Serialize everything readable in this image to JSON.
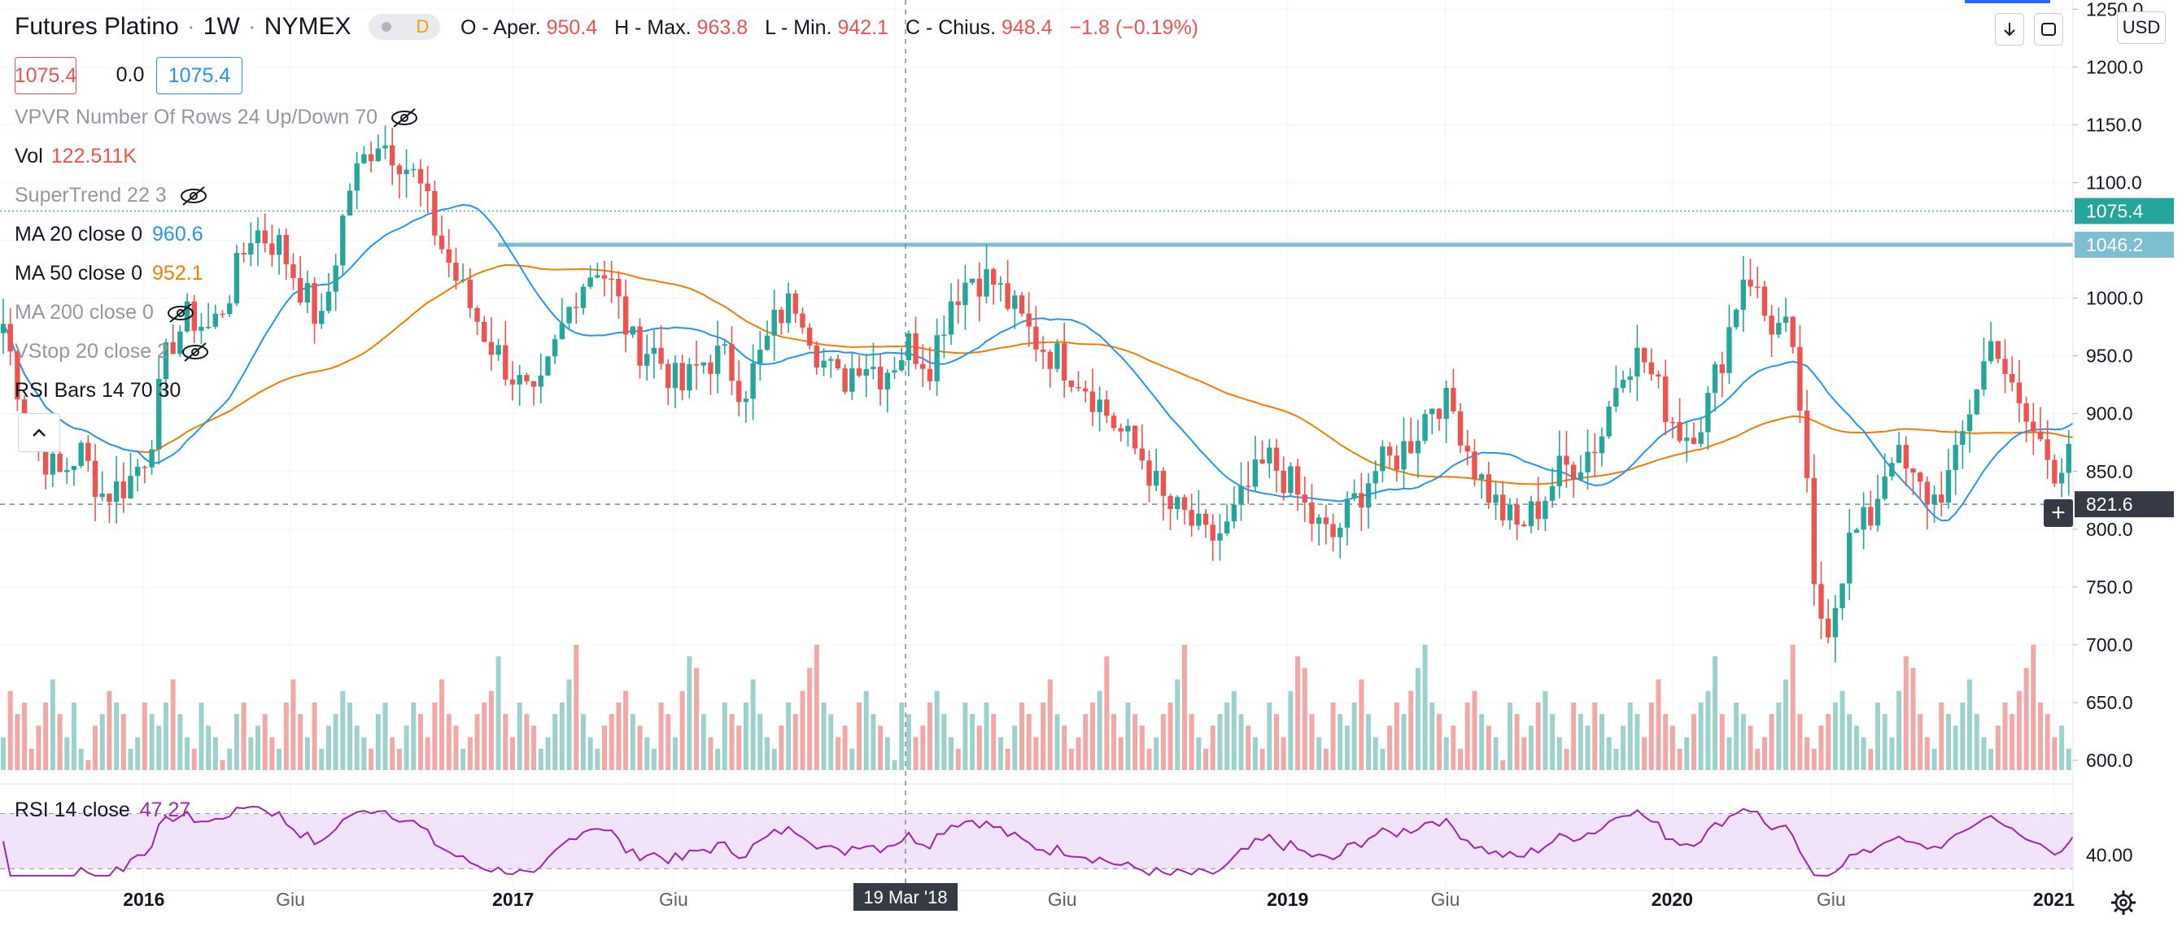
{
  "symbol": {
    "name": "Futures Platino",
    "interval": "1W",
    "exchange": "NYMEX",
    "badge": "D"
  },
  "ohlc": {
    "o_label": "O - Aper.",
    "o": "950.4",
    "h_label": "H - Max.",
    "h": "963.8",
    "l_label": "L - Min.",
    "l": "942.1",
    "c_label": "C - Chius.",
    "c": "948.4",
    "change": "−1.8 (−0.19%)"
  },
  "boxes": {
    "left": "1075.4",
    "mid": "0.0",
    "right": "1075.4"
  },
  "indicators": [
    {
      "label": "VPVR Number Of Rows 24 Up/Down 70",
      "value": "",
      "hidden": true
    },
    {
      "label": "Vol",
      "value": "122.511K",
      "hidden": false
    },
    {
      "label": "SuperTrend 22 3",
      "value": "",
      "hidden": true
    },
    {
      "label": "MA 20 close 0",
      "value": "960.6",
      "hidden": false
    },
    {
      "label": "MA 50 close 0",
      "value": "952.1",
      "hidden": false
    },
    {
      "label": "MA 200 close 0",
      "value": "",
      "hidden": true
    },
    {
      "label": "VStop 20 close 2",
      "value": "",
      "hidden": true
    },
    {
      "label": "RSI Bars 14 70 30",
      "value": "",
      "hidden": false
    }
  ],
  "rsi_legend": {
    "label": "RSI 14 close",
    "value": "47.27"
  },
  "currency": "USD",
  "crosshair_date": "19 Mar '18",
  "colors": {
    "up": "#26a69a",
    "down": "#ef5350",
    "ma20": "#2196f3",
    "ma50": "#f57c00",
    "hline": "#7cbfd0",
    "rsi": "#9c27b0",
    "rsi_band": "#f1e4fa",
    "vol_up": "#9dd2cc",
    "vol_down": "#f1a8a6"
  },
  "chart_data": {
    "type": "candlestick",
    "title": "Futures Platino · 1W · NYMEX",
    "ylim": [
      581,
      1258
    ],
    "ytick_labels": [
      "1250.0",
      "1200.0",
      "1150.0",
      "1100.0",
      "1050.0",
      "1000.0",
      "950.0",
      "900.0",
      "850.0",
      "800.0",
      "750.0",
      "700.0",
      "650.0",
      "600.0"
    ],
    "ytick_values": [
      1250,
      1200,
      1150,
      1100,
      1050,
      1000,
      950,
      900,
      850,
      800,
      750,
      700,
      650,
      600
    ],
    "xtick_labels": [
      "2016",
      "Giu",
      "2017",
      "Giu",
      "2018",
      "Giu",
      "2019",
      "Giu",
      "2020",
      "Giu",
      "2021",
      "Giu"
    ],
    "xtick_positions": [
      0.104,
      0.21,
      0.371,
      0.487,
      0.647,
      0.768,
      0.931,
      1.045,
      1.209,
      1.324,
      1.485,
      1.599
    ],
    "last_price": "1075.4",
    "last_value": 1075.4,
    "hline_label": "1046.2",
    "hline_value": 1046.2,
    "crosshair_price": "821.6",
    "crosshair_value": 821.6,
    "rsi_ticks": [
      "40.00"
    ],
    "rsi_tick_values": [
      40
    ],
    "rsi_range": [
      22,
      88
    ],
    "rsi_band": [
      30,
      70
    ],
    "anchors": [
      [
        0,
        978
      ],
      [
        0.014,
        906
      ],
      [
        0.026,
        870
      ],
      [
        0.04,
        845
      ],
      [
        0.055,
        868
      ],
      [
        0.072,
        830
      ],
      [
        0.09,
        840
      ],
      [
        0.105,
        870
      ],
      [
        0.12,
        960
      ],
      [
        0.135,
        985
      ],
      [
        0.15,
        972
      ],
      [
        0.165,
        1010
      ],
      [
        0.18,
        1060
      ],
      [
        0.2,
        1045
      ],
      [
        0.215,
        1010
      ],
      [
        0.23,
        975
      ],
      [
        0.25,
        1095
      ],
      [
        0.27,
        1140
      ],
      [
        0.285,
        1125
      ],
      [
        0.3,
        1100
      ],
      [
        0.315,
        1050
      ],
      [
        0.33,
        1010
      ],
      [
        0.35,
        965
      ],
      [
        0.37,
        930
      ],
      [
        0.385,
        905
      ],
      [
        0.4,
        960
      ],
      [
        0.415,
        1010
      ],
      [
        0.43,
        1030
      ],
      [
        0.44,
        1010
      ],
      [
        0.455,
        960
      ],
      [
        0.47,
        955
      ],
      [
        0.49,
        920
      ],
      [
        0.505,
        945
      ],
      [
        0.52,
        950
      ],
      [
        0.535,
        920
      ],
      [
        0.55,
        955
      ],
      [
        0.56,
        985
      ],
      [
        0.575,
        1000
      ],
      [
        0.59,
        950
      ],
      [
        0.605,
        925
      ],
      [
        0.62,
        950
      ],
      [
        0.635,
        935
      ],
      [
        0.655,
        960
      ],
      [
        0.67,
        945
      ],
      [
        0.685,
        1000
      ],
      [
        0.7,
        1020
      ],
      [
        0.715,
        1015
      ],
      [
        0.73,
        990
      ],
      [
        0.745,
        965
      ],
      [
        0.76,
        950
      ],
      [
        0.78,
        930
      ],
      [
        0.795,
        905
      ],
      [
        0.81,
        880
      ],
      [
        0.825,
        860
      ],
      [
        0.84,
        820
      ],
      [
        0.855,
        810
      ],
      [
        0.87,
        790
      ],
      [
        0.885,
        800
      ],
      [
        0.9,
        835
      ],
      [
        0.915,
        860
      ],
      [
        0.93,
        840
      ],
      [
        0.945,
        810
      ],
      [
        0.96,
        790
      ],
      [
        0.975,
        820
      ],
      [
        0.99,
        850
      ],
      [
        1.005,
        860
      ],
      [
        1.02,
        880
      ],
      [
        1.035,
        915
      ],
      [
        1.05,
        900
      ],
      [
        1.065,
        850
      ],
      [
        1.08,
        820
      ],
      [
        1.095,
        800
      ],
      [
        1.11,
        820
      ],
      [
        1.125,
        850
      ],
      [
        1.14,
        860
      ],
      [
        1.155,
        880
      ],
      [
        1.17,
        945
      ],
      [
        1.185,
        950
      ],
      [
        1.2,
        910
      ],
      [
        1.215,
        880
      ],
      [
        1.23,
        900
      ],
      [
        1.245,
        960
      ],
      [
        1.26,
        1030
      ],
      [
        1.275,
        980
      ],
      [
        1.29,
        970
      ],
      [
        1.3,
        900
      ],
      [
        1.31,
        730
      ],
      [
        1.32,
        720
      ],
      [
        1.335,
        790
      ],
      [
        1.35,
        810
      ],
      [
        1.365,
        870
      ],
      [
        1.38,
        840
      ],
      [
        1.395,
        825
      ],
      [
        1.41,
        850
      ],
      [
        1.425,
        920
      ],
      [
        1.44,
        970
      ],
      [
        1.455,
        905
      ],
      [
        1.47,
        880
      ],
      [
        1.485,
        850
      ],
      [
        1.5,
        900
      ],
      [
        1.515,
        935
      ],
      [
        1.53,
        1050
      ],
      [
        1.54,
        1020
      ],
      [
        1.55,
        1035
      ],
      [
        1.565,
        1072
      ]
    ],
    "volumes": [
      620,
      660,
      640,
      650,
      610,
      630,
      650,
      670,
      640,
      620,
      650,
      610,
      600,
      630,
      640,
      660,
      650,
      640,
      610,
      620,
      650,
      640,
      630,
      650,
      670,
      640,
      620,
      610,
      650,
      630,
      620,
      600,
      610,
      640,
      650,
      620,
      630,
      640,
      620,
      610,
      650,
      670,
      640,
      620,
      650,
      610,
      630,
      640,
      660,
      650,
      630,
      620,
      610,
      640,
      650,
      620,
      610,
      630,
      650,
      640,
      620,
      650,
      670,
      640,
      630,
      610,
      620,
      640,
      650,
      660,
      690,
      640,
      620,
      650,
      640,
      630,
      610,
      620,
      640,
      650,
      670,
      700,
      640,
      620,
      610,
      630,
      640,
      650,
      660,
      640,
      630,
      620,
      610,
      650,
      640,
      620,
      660,
      690,
      680,
      640,
      620,
      610,
      650,
      640,
      630,
      650,
      670,
      640,
      620,
      610,
      630,
      650,
      640,
      660,
      680,
      700,
      650,
      640,
      620,
      630,
      610,
      650,
      660,
      640,
      630,
      620,
      600,
      650,
      640,
      620,
      630,
      650,
      660,
      640,
      620,
      610,
      650,
      640,
      630,
      650,
      640,
      620,
      610,
      630,
      650,
      640,
      620,
      650,
      670,
      640,
      630,
      610,
      620,
      640,
      650,
      660,
      690,
      640,
      620,
      650,
      640,
      630,
      610,
      620,
      640,
      650,
      670,
      700,
      640,
      620,
      610,
      630,
      640,
      650,
      660,
      640,
      630,
      620,
      610,
      650,
      640,
      620,
      660,
      690,
      680,
      640,
      620,
      610,
      650,
      640,
      630,
      650,
      670,
      640,
      620,
      610,
      630,
      650,
      640,
      660,
      680,
      700,
      650,
      640,
      620,
      630,
      610,
      650,
      660,
      640,
      630,
      620,
      600,
      650,
      640,
      620,
      630,
      650,
      660,
      640,
      620,
      610,
      650,
      640,
      630,
      650,
      640,
      620,
      610,
      630,
      650,
      640,
      620,
      650,
      670,
      640,
      630,
      610,
      620,
      640,
      650,
      660,
      690,
      640,
      620,
      650,
      640,
      630,
      610,
      620,
      640,
      650,
      670,
      700,
      640,
      620,
      610,
      630,
      640,
      650,
      660,
      640,
      630,
      620,
      610,
      650,
      640,
      620,
      660,
      690,
      680,
      640,
      620,
      610,
      650,
      640,
      630,
      650,
      670,
      640,
      620,
      610,
      630,
      650,
      640,
      660,
      680,
      700,
      650,
      640,
      620,
      630,
      610,
      650,
      660,
      640,
      630,
      620,
      600,
      650
    ]
  }
}
